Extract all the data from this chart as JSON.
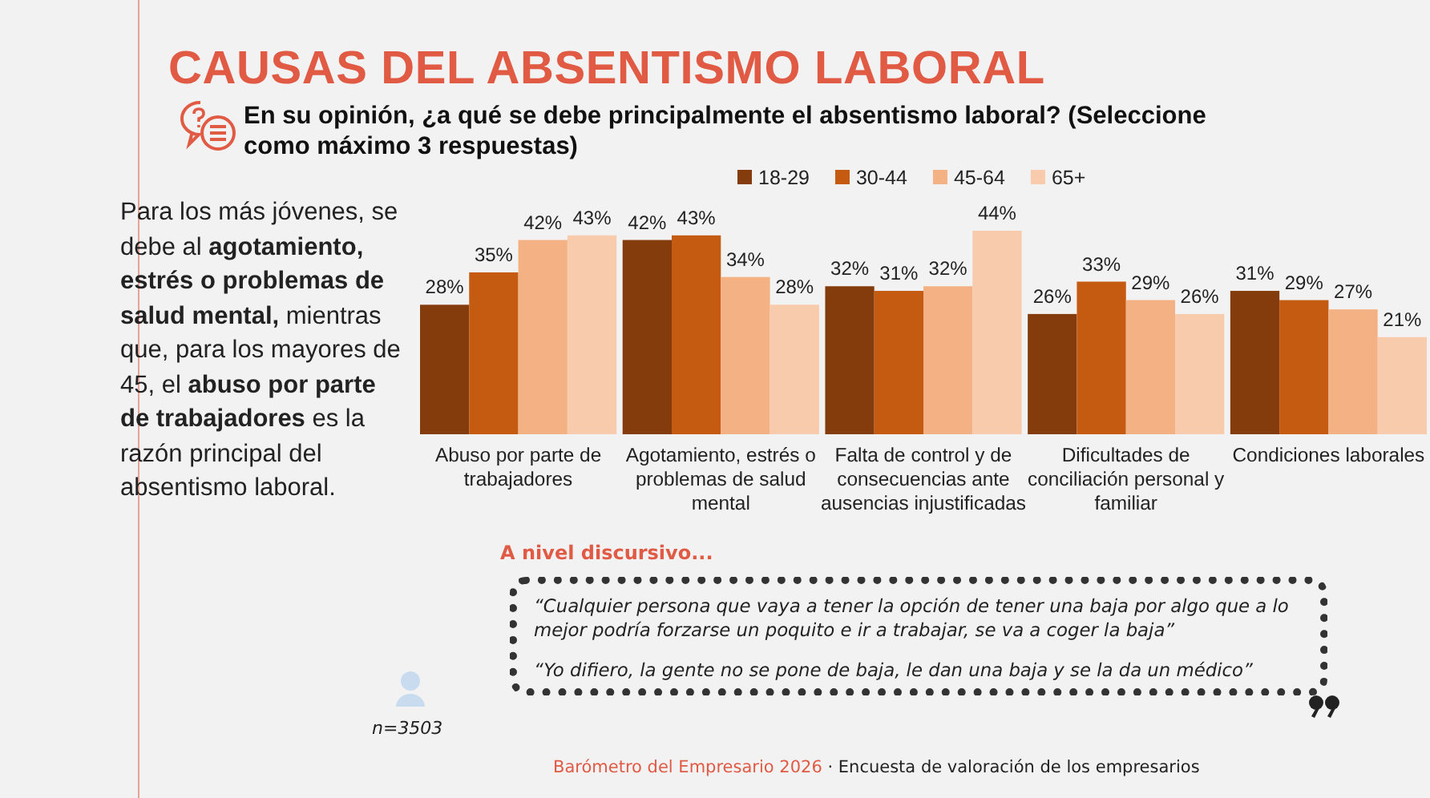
{
  "chart_data": {
    "type": "bar",
    "title": "CAUSAS DEL ABSENTISMO LABORAL",
    "subtitle": "En su opinión, ¿a qué se debe principalmente el absentismo laboral? (Seleccione como máximo 3 respuestas)",
    "categories": [
      "Abuso por parte de trabajadores",
      "Agotamiento, estrés o problemas de salud mental",
      "Falta de control y de consecuencias ante ausencias injustificadas",
      "Dificultades de conciliación personal y familiar",
      "Condiciones laborales"
    ],
    "series": [
      {
        "name": "18-29",
        "color": "#843c0c",
        "values": [
          28,
          42,
          32,
          26,
          31
        ],
        "value_labels": [
          "28%",
          "42%",
          "32%",
          "26%",
          "31%"
        ]
      },
      {
        "name": "30-44",
        "color": "#c55a11",
        "values": [
          35,
          43,
          31,
          33,
          29
        ],
        "value_labels": [
          "35%",
          "43%",
          "31%",
          "33%",
          "29%"
        ]
      },
      {
        "name": "45-64",
        "color": "#f4b183",
        "values": [
          42,
          34,
          32,
          29,
          27
        ],
        "value_labels": [
          "42%",
          "34%",
          "32%",
          "29%",
          "27%"
        ]
      },
      {
        "name": "65+",
        "color": "#f8cbad",
        "values": [
          43,
          28,
          44,
          26,
          21
        ],
        "value_labels": [
          "43%",
          "28%",
          "44%",
          "26%",
          "21%"
        ]
      }
    ],
    "legend": "top",
    "annotations": [
      "Para los más jóvenes, se debe al ",
      "agotamiento, estrés o problemas de salud mental,",
      " mientras que, para los mayores de 45, el ",
      "abuso por parte de trabajadores",
      " es la razón principal del absentismo laboral.",
      "A nivel discursivo...",
      "“Cualquier persona que vaya a tener la opción de tener una baja por algo que a lo mejor podría forzarse un poquito e ir a trabajar, se va a coger la baja”",
      "“Yo difiero, la gente no se pone de baja, le dan una baja y se la da un médico”",
      "n=3503",
      "Barómetro del Empresario 2026 · Encuesta de valoración de los empresarios"
    ]
  }
}
